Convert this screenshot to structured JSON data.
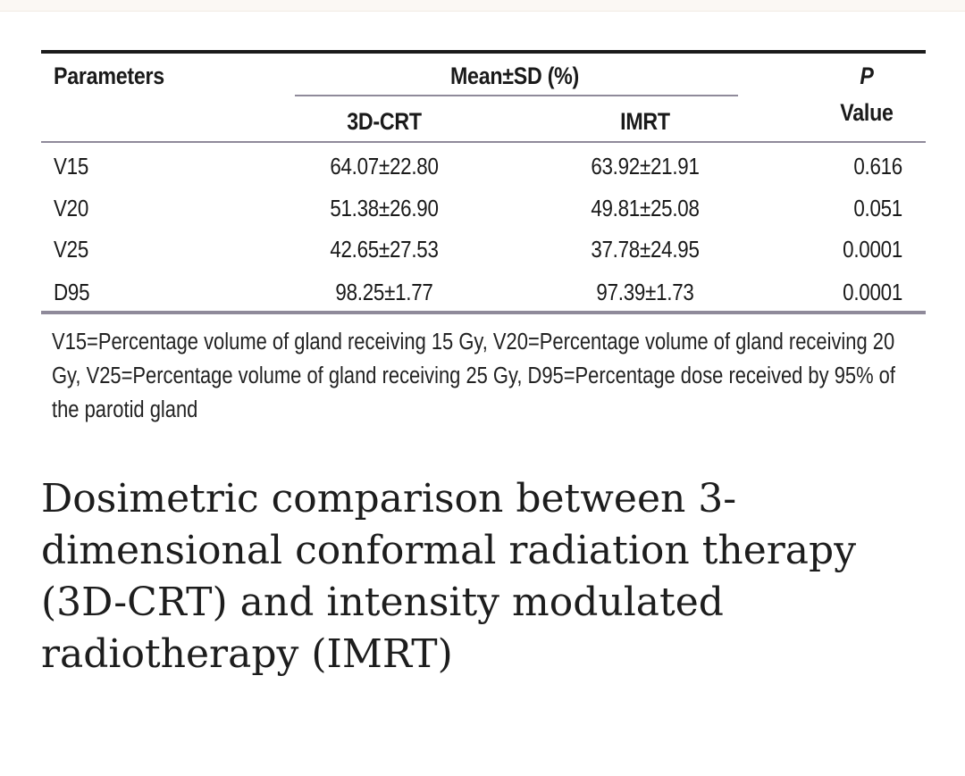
{
  "table": {
    "header": {
      "parameters": "Parameters",
      "mean_sd": "Mean±SD (%)",
      "col_3dcrt": "3D-CRT",
      "col_imrt": "IMRT",
      "p": "P",
      "value": "Value"
    },
    "rows": [
      {
        "parameter": "V15",
        "crt": "64.07±22.80",
        "imrt": "63.92±21.91",
        "p_value": "0.616"
      },
      {
        "parameter": "V20",
        "crt": "51.38±26.90",
        "imrt": "49.81±25.08",
        "p_value": "0.051"
      },
      {
        "parameter": "V25",
        "crt": "42.65±27.53",
        "imrt": "37.78±24.95",
        "p_value": "0.0001"
      },
      {
        "parameter": "D95",
        "crt": "98.25±1.77",
        "imrt": "97.39±1.73",
        "p_value": "0.0001"
      }
    ],
    "footnote": "V15=Percentage volume of gland receiving 15 Gy, V20=Percentage volume of gland receiving 20 Gy, V25=Percentage volume of gland receiving 25 Gy, D95=Percentage dose received by 95% of the parotid gland"
  },
  "caption": "Dosimetric comparison between 3-dimensional conformal radiation therapy (3D-CRT) and intensity modulated radiotherapy (IMRT)",
  "colors": {
    "text": "#1a1a1a",
    "rule_dark": "#1b1b1b",
    "rule_light": "#8f8a9a"
  }
}
